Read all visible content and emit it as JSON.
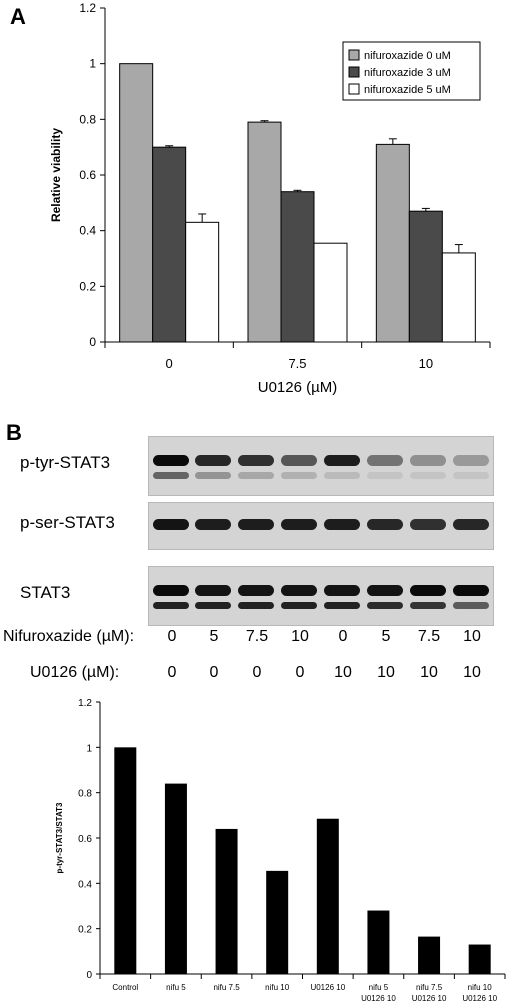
{
  "panel_a_letter": "A",
  "panel_b_letter": "B",
  "chart_data": [
    {
      "type": "bar",
      "title": "",
      "ylabel": "Relative viability",
      "xlabel": "U0126 (µM)",
      "categories": [
        "0",
        "7.5",
        "10"
      ],
      "ylim": [
        0,
        1.2
      ],
      "yticks": [
        "0",
        "0.2",
        "0.4",
        "0.6",
        "0.8",
        "1",
        "1.2"
      ],
      "legend_position": "top-right",
      "series": [
        {
          "name": "nifuroxazide 0 uM",
          "values": [
            1.0,
            0.79,
            0.71
          ],
          "errors": [
            0,
            0.005,
            0.02
          ],
          "color": "#a8a8a8"
        },
        {
          "name": "nifuroxazide 3 uM",
          "values": [
            0.7,
            0.54,
            0.47
          ],
          "errors": [
            0.005,
            0.005,
            0.01
          ],
          "color": "#4a4a4a"
        },
        {
          "name": "nifuroxazide 5 uM",
          "values": [
            0.43,
            0.355,
            0.32
          ],
          "errors": [
            0.03,
            0,
            0.03
          ],
          "color": "#ffffff"
        }
      ]
    },
    {
      "type": "bar",
      "title": "",
      "ylabel": "p-tyr-STAT3/STAT3",
      "xlabel": "",
      "categories": [
        [
          "Control"
        ],
        [
          "nifu 5"
        ],
        [
          "nifu 7.5"
        ],
        [
          "nifu 10"
        ],
        [
          "U0126 10"
        ],
        [
          "nifu 5",
          "U0126 10"
        ],
        [
          "nifu 7.5",
          "U0126 10"
        ],
        [
          "nifu 10",
          "U0126 10"
        ]
      ],
      "ylim": [
        0,
        1.2
      ],
      "yticks": [
        "0",
        "0.2",
        "0.4",
        "0.6",
        "0.8",
        "1",
        "1.2"
      ],
      "series": [
        {
          "name": "",
          "values": [
            1.0,
            0.84,
            0.64,
            0.455,
            0.685,
            0.28,
            0.165,
            0.13
          ],
          "color": "#000000"
        }
      ]
    }
  ],
  "blots": [
    {
      "label": "p-tyr-STAT3",
      "intensities": [
        1.0,
        0.85,
        0.8,
        0.6,
        0.9,
        0.45,
        0.3,
        0.25
      ],
      "lower_band": [
        0.55,
        0.3,
        0.2,
        0.15,
        0.1,
        0.05,
        0.05,
        0.05
      ]
    },
    {
      "label": "p-ser-STAT3",
      "intensities": [
        0.95,
        0.9,
        0.9,
        0.9,
        0.9,
        0.85,
        0.8,
        0.85
      ],
      "lower_band": []
    },
    {
      "label": "STAT3",
      "intensities": [
        1.0,
        0.95,
        0.95,
        0.95,
        0.95,
        0.95,
        1.0,
        1.0
      ],
      "lower_band": [
        0.9,
        0.9,
        0.9,
        0.9,
        0.9,
        0.85,
        0.8,
        0.6
      ]
    }
  ],
  "treatment_rows": [
    {
      "label": "Nifuroxazide (µM):",
      "values": [
        "0",
        "5",
        "7.5",
        "10",
        "0",
        "5",
        "7.5",
        "10"
      ]
    },
    {
      "label": "U0126 (µM):",
      "values": [
        "0",
        "0",
        "0",
        "0",
        "10",
        "10",
        "10",
        "10"
      ]
    }
  ]
}
